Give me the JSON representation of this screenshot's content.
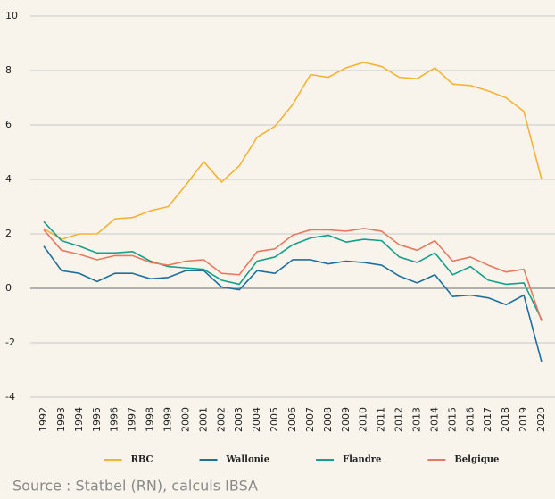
{
  "chart_data": {
    "type": "line",
    "categories": [
      "1992",
      "1993",
      "1994",
      "1995",
      "1996",
      "1997",
      "1998",
      "1999",
      "2000",
      "2001",
      "2002",
      "2003",
      "2004",
      "2005",
      "2006",
      "2007",
      "2008",
      "2009",
      "2010",
      "2011",
      "2012",
      "2013",
      "2014",
      "2015",
      "2016",
      "2017",
      "2018",
      "2019",
      "2020"
    ],
    "series": [
      {
        "name": "RBC",
        "color": "#f5b335",
        "values": [
          2.2,
          1.8,
          2.0,
          2.0,
          2.55,
          2.6,
          2.85,
          3.0,
          3.8,
          4.65,
          3.9,
          4.5,
          5.55,
          5.95,
          6.75,
          7.85,
          7.75,
          8.1,
          8.3,
          8.15,
          7.75,
          7.7,
          8.1,
          7.5,
          7.45,
          7.25,
          7.0,
          6.5,
          4.0
        ]
      },
      {
        "name": "Wallonie",
        "color": "#1f6f9e",
        "values": [
          1.55,
          0.65,
          0.55,
          0.25,
          0.55,
          0.55,
          0.35,
          0.4,
          0.65,
          0.65,
          0.05,
          -0.05,
          0.65,
          0.55,
          1.05,
          1.05,
          0.9,
          1.0,
          0.95,
          0.85,
          0.45,
          0.2,
          0.5,
          -0.3,
          -0.25,
          -0.35,
          -0.6,
          -0.25,
          -2.7
        ]
      },
      {
        "name": "Flandre",
        "color": "#14a08a",
        "values": [
          2.45,
          1.75,
          1.55,
          1.3,
          1.3,
          1.35,
          1.0,
          0.8,
          0.75,
          0.7,
          0.3,
          0.15,
          1.0,
          1.15,
          1.6,
          1.85,
          1.95,
          1.7,
          1.8,
          1.75,
          1.15,
          0.95,
          1.3,
          0.5,
          0.8,
          0.3,
          0.15,
          0.2,
          -1.15
        ]
      },
      {
        "name": "Belgique",
        "color": "#e8795e",
        "values": [
          2.15,
          1.4,
          1.25,
          1.05,
          1.2,
          1.2,
          0.95,
          0.85,
          1.0,
          1.05,
          0.55,
          0.5,
          1.35,
          1.45,
          1.95,
          2.15,
          2.15,
          2.1,
          2.2,
          2.1,
          1.6,
          1.4,
          1.75,
          1.0,
          1.15,
          0.85,
          0.6,
          0.7,
          -1.2
        ]
      }
    ],
    "ylim": [
      -4,
      10
    ],
    "yticks": [
      -4,
      -2,
      0,
      2,
      4,
      6,
      8,
      10
    ],
    "grid": true,
    "legend": "bottom",
    "source": "Source : Statbel (RN), calculs IBSA"
  }
}
